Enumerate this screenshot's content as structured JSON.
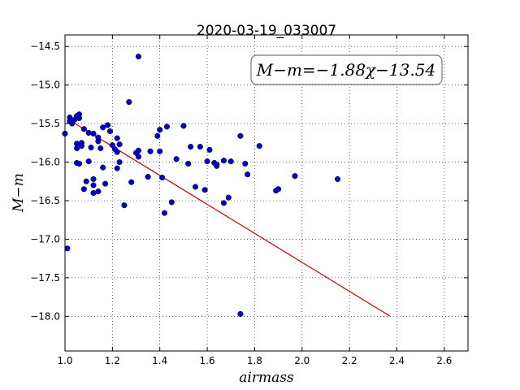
{
  "chart_data": {
    "type": "scatter",
    "title": "2020-03-19_033007",
    "xlabel": "airmass",
    "ylabel": "M−m",
    "xlim": [
      1.0,
      2.7
    ],
    "ylim": [
      -18.45,
      -14.35
    ],
    "xticks": [
      1.0,
      1.2,
      1.4,
      1.6,
      1.8,
      2.0,
      2.2,
      2.4,
      2.6
    ],
    "xtick_labels": [
      "1.0",
      "1.2",
      "1.4",
      "1.6",
      "1.8",
      "2.0",
      "2.2",
      "2.4",
      "2.6"
    ],
    "yticks": [
      -14.5,
      -15.0,
      -15.5,
      -16.0,
      -16.5,
      -17.0,
      -17.5,
      -18.0
    ],
    "ytick_labels": [
      "−14.5",
      "−15.0",
      "−15.5",
      "−16.0",
      "−16.5",
      "−17.0",
      "−17.5",
      "−18.0"
    ],
    "grid": true,
    "annotation": "M−m=−1.88χ−13.54",
    "point_color": "#0000cc",
    "line_color": "#cc0000",
    "fit": {
      "slope": -1.88,
      "intercept": -13.54,
      "x_range": [
        1.02,
        2.37
      ]
    },
    "points": [
      {
        "x": 1.0,
        "y": -15.63
      },
      {
        "x": 1.02,
        "y": -15.42
      },
      {
        "x": 1.02,
        "y": -15.47
      },
      {
        "x": 1.03,
        "y": -15.5
      },
      {
        "x": 1.04,
        "y": -15.45
      },
      {
        "x": 1.05,
        "y": -15.4
      },
      {
        "x": 1.06,
        "y": -15.38
      },
      {
        "x": 1.06,
        "y": -15.43
      },
      {
        "x": 1.05,
        "y": -15.76
      },
      {
        "x": 1.05,
        "y": -15.82
      },
      {
        "x": 1.07,
        "y": -15.75
      },
      {
        "x": 1.07,
        "y": -15.79
      },
      {
        "x": 1.08,
        "y": -15.57
      },
      {
        "x": 1.05,
        "y": -16.01
      },
      {
        "x": 1.06,
        "y": -16.02
      },
      {
        "x": 1.08,
        "y": -16.35
      },
      {
        "x": 1.09,
        "y": -16.25
      },
      {
        "x": 1.1,
        "y": -15.62
      },
      {
        "x": 1.1,
        "y": -15.99
      },
      {
        "x": 1.11,
        "y": -15.81
      },
      {
        "x": 1.12,
        "y": -15.63
      },
      {
        "x": 1.12,
        "y": -16.22
      },
      {
        "x": 1.12,
        "y": -16.3
      },
      {
        "x": 1.12,
        "y": -16.4
      },
      {
        "x": 1.14,
        "y": -16.38
      },
      {
        "x": 1.14,
        "y": -15.68
      },
      {
        "x": 1.14,
        "y": -15.73
      },
      {
        "x": 1.15,
        "y": -15.82
      },
      {
        "x": 1.16,
        "y": -15.55
      },
      {
        "x": 1.16,
        "y": -16.07
      },
      {
        "x": 1.17,
        "y": -16.28
      },
      {
        "x": 1.18,
        "y": -15.52
      },
      {
        "x": 1.19,
        "y": -15.6
      },
      {
        "x": 1.2,
        "y": -15.78
      },
      {
        "x": 1.21,
        "y": -15.83
      },
      {
        "x": 1.22,
        "y": -15.69
      },
      {
        "x": 1.22,
        "y": -15.87
      },
      {
        "x": 1.22,
        "y": -16.08
      },
      {
        "x": 1.23,
        "y": -15.77
      },
      {
        "x": 1.23,
        "y": -16.0
      },
      {
        "x": 1.25,
        "y": -16.56
      },
      {
        "x": 1.27,
        "y": -15.22
      },
      {
        "x": 1.28,
        "y": -16.26
      },
      {
        "x": 1.3,
        "y": -15.88
      },
      {
        "x": 1.31,
        "y": -15.85
      },
      {
        "x": 1.31,
        "y": -15.93
      },
      {
        "x": 1.31,
        "y": -14.63
      },
      {
        "x": 1.35,
        "y": -16.19
      },
      {
        "x": 1.36,
        "y": -15.86
      },
      {
        "x": 1.39,
        "y": -15.66
      },
      {
        "x": 1.4,
        "y": -15.58
      },
      {
        "x": 1.4,
        "y": -15.86
      },
      {
        "x": 1.41,
        "y": -16.2
      },
      {
        "x": 1.42,
        "y": -16.66
      },
      {
        "x": 1.43,
        "y": -15.54
      },
      {
        "x": 1.45,
        "y": -16.52
      },
      {
        "x": 1.47,
        "y": -15.96
      },
      {
        "x": 1.5,
        "y": -15.53
      },
      {
        "x": 1.52,
        "y": -16.02
      },
      {
        "x": 1.53,
        "y": -15.8
      },
      {
        "x": 1.55,
        "y": -16.32
      },
      {
        "x": 1.57,
        "y": -15.8
      },
      {
        "x": 1.59,
        "y": -16.36
      },
      {
        "x": 1.6,
        "y": -15.99
      },
      {
        "x": 1.61,
        "y": -15.84
      },
      {
        "x": 1.63,
        "y": -16.01
      },
      {
        "x": 1.64,
        "y": -16.05
      },
      {
        "x": 1.64,
        "y": -16.03
      },
      {
        "x": 1.67,
        "y": -15.98
      },
      {
        "x": 1.67,
        "y": -16.53
      },
      {
        "x": 1.69,
        "y": -16.46
      },
      {
        "x": 1.7,
        "y": -15.99
      },
      {
        "x": 1.74,
        "y": -15.66
      },
      {
        "x": 1.74,
        "y": -17.97
      },
      {
        "x": 1.76,
        "y": -16.02
      },
      {
        "x": 1.77,
        "y": -16.16
      },
      {
        "x": 1.82,
        "y": -15.79
      },
      {
        "x": 1.89,
        "y": -16.37
      },
      {
        "x": 1.9,
        "y": -16.35
      },
      {
        "x": 1.97,
        "y": -16.18
      },
      {
        "x": 2.15,
        "y": -16.22
      },
      {
        "x": 1.01,
        "y": -17.12
      }
    ]
  }
}
